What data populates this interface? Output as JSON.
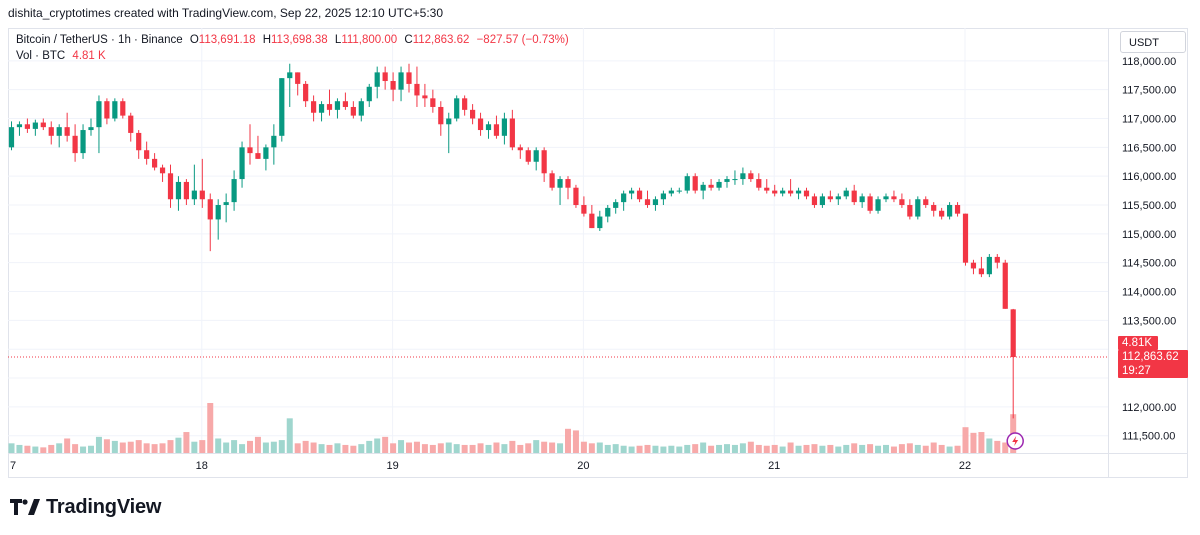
{
  "caption": "dishita_cryptotimes created with TradingView.com, Sep 22, 2025 12:10 UTC+5:30",
  "legend": {
    "symbol": "Bitcoin / TetherUS · 1h · Binance",
    "o_label": "O",
    "o": "113,691.18",
    "h_label": "H",
    "h": "113,698.38",
    "l_label": "L",
    "l": "111,800.00",
    "c_label": "C",
    "c": "112,863.62",
    "change": "−827.57 (−0.73%)",
    "vol_label": "Vol · BTC",
    "vol": "4.81 K"
  },
  "currency_button": "USDT",
  "brand": "TradingView",
  "colors": {
    "up": "#089981",
    "down": "#f23645",
    "up_vol": "#9fd6ce",
    "down_vol": "#f7a9a9",
    "grid": "#f0f3fa"
  },
  "chart_data": {
    "type": "candlestick",
    "symbol": "Bitcoin / TetherUS",
    "interval": "1h",
    "exchange": "Binance",
    "y_ticks": [
      111500,
      112000,
      112500,
      113000,
      113500,
      114000,
      114500,
      115000,
      115500,
      116000,
      116500,
      117000,
      117500,
      118000
    ],
    "y_tick_labels": [
      "111,500.00",
      "112,000.00",
      "",
      "",
      "113,500.00",
      "114,000.00",
      "114,500.00",
      "115,000.00",
      "115,500.00",
      "116,000.00",
      "116,500.00",
      "117,000.00",
      "117,500.00",
      "118,000.00"
    ],
    "ylim": [
      111200,
      118500
    ],
    "x_ticks": [
      {
        "label": "7",
        "index": 0
      },
      {
        "label": "18",
        "index": 24
      },
      {
        "label": "19",
        "index": 48
      },
      {
        "label": "20",
        "index": 72
      },
      {
        "label": "21",
        "index": 96
      },
      {
        "label": "22",
        "index": 120
      }
    ],
    "x_first_offset": -0.5,
    "last_price": "112,863.62",
    "last_price_value": 112863.62,
    "countdown": "19:27",
    "volume_tag": "4.81K",
    "candles": [
      {
        "o": 116500,
        "h": 116950,
        "l": 116450,
        "c": 116850,
        "v": 1.2
      },
      {
        "o": 116850,
        "h": 116950,
        "l": 116700,
        "c": 116900,
        "v": 1.0
      },
      {
        "o": 116900,
        "h": 117000,
        "l": 116750,
        "c": 116820,
        "v": 0.9
      },
      {
        "o": 116820,
        "h": 116980,
        "l": 116700,
        "c": 116930,
        "v": 0.8
      },
      {
        "o": 116930,
        "h": 117000,
        "l": 116800,
        "c": 116850,
        "v": 0.7
      },
      {
        "o": 116850,
        "h": 116950,
        "l": 116550,
        "c": 116700,
        "v": 1.0
      },
      {
        "o": 116700,
        "h": 116900,
        "l": 116500,
        "c": 116850,
        "v": 1.2
      },
      {
        "o": 116850,
        "h": 117100,
        "l": 116600,
        "c": 116700,
        "v": 1.8
      },
      {
        "o": 116700,
        "h": 116900,
        "l": 116250,
        "c": 116400,
        "v": 1.1
      },
      {
        "o": 116400,
        "h": 116900,
        "l": 116300,
        "c": 116800,
        "v": 0.8
      },
      {
        "o": 116800,
        "h": 117000,
        "l": 116700,
        "c": 116850,
        "v": 0.9
      },
      {
        "o": 116850,
        "h": 117400,
        "l": 116400,
        "c": 117300,
        "v": 2.0
      },
      {
        "o": 117300,
        "h": 117350,
        "l": 116900,
        "c": 117000,
        "v": 1.7
      },
      {
        "o": 117000,
        "h": 117350,
        "l": 116950,
        "c": 117300,
        "v": 1.5
      },
      {
        "o": 117300,
        "h": 117350,
        "l": 117000,
        "c": 117050,
        "v": 1.3
      },
      {
        "o": 117050,
        "h": 117100,
        "l": 116600,
        "c": 116750,
        "v": 1.4
      },
      {
        "o": 116750,
        "h": 116800,
        "l": 116300,
        "c": 116450,
        "v": 1.6
      },
      {
        "o": 116450,
        "h": 116600,
        "l": 116200,
        "c": 116300,
        "v": 1.2
      },
      {
        "o": 116300,
        "h": 116400,
        "l": 116100,
        "c": 116150,
        "v": 1.1
      },
      {
        "o": 116150,
        "h": 116200,
        "l": 115900,
        "c": 116050,
        "v": 1.2
      },
      {
        "o": 116050,
        "h": 116200,
        "l": 115450,
        "c": 115600,
        "v": 1.6
      },
      {
        "o": 115600,
        "h": 116000,
        "l": 115400,
        "c": 115900,
        "v": 1.9
      },
      {
        "o": 115900,
        "h": 115950,
        "l": 115500,
        "c": 115600,
        "v": 2.6
      },
      {
        "o": 115600,
        "h": 116200,
        "l": 115500,
        "c": 115750,
        "v": 1.4
      },
      {
        "o": 115750,
        "h": 116300,
        "l": 115450,
        "c": 115600,
        "v": 1.6
      },
      {
        "o": 115600,
        "h": 115700,
        "l": 114700,
        "c": 115250,
        "v": 6.2
      },
      {
        "o": 115250,
        "h": 115600,
        "l": 114900,
        "c": 115500,
        "v": 1.8
      },
      {
        "o": 115500,
        "h": 115700,
        "l": 115200,
        "c": 115550,
        "v": 1.3
      },
      {
        "o": 115550,
        "h": 116100,
        "l": 115400,
        "c": 115950,
        "v": 1.6
      },
      {
        "o": 115950,
        "h": 116600,
        "l": 115800,
        "c": 116500,
        "v": 1.1
      },
      {
        "o": 116500,
        "h": 116900,
        "l": 116200,
        "c": 116400,
        "v": 1.5
      },
      {
        "o": 116400,
        "h": 116700,
        "l": 116300,
        "c": 116300,
        "v": 2.0
      },
      {
        "o": 116300,
        "h": 116550,
        "l": 116100,
        "c": 116500,
        "v": 1.3
      },
      {
        "o": 116500,
        "h": 116900,
        "l": 116200,
        "c": 116700,
        "v": 1.4
      },
      {
        "o": 116700,
        "h": 117700,
        "l": 116600,
        "c": 117700,
        "v": 1.6
      },
      {
        "o": 117700,
        "h": 117950,
        "l": 117200,
        "c": 117800,
        "v": 4.3
      },
      {
        "o": 117800,
        "h": 117800,
        "l": 117400,
        "c": 117600,
        "v": 1.2
      },
      {
        "o": 117600,
        "h": 117650,
        "l": 117200,
        "c": 117300,
        "v": 1.5
      },
      {
        "o": 117300,
        "h": 117400,
        "l": 116950,
        "c": 117100,
        "v": 1.3
      },
      {
        "o": 117100,
        "h": 117300,
        "l": 116950,
        "c": 117250,
        "v": 1.1
      },
      {
        "o": 117250,
        "h": 117500,
        "l": 117050,
        "c": 117150,
        "v": 1.0
      },
      {
        "o": 117150,
        "h": 117350,
        "l": 117000,
        "c": 117300,
        "v": 1.2
      },
      {
        "o": 117300,
        "h": 117450,
        "l": 117150,
        "c": 117200,
        "v": 1.0
      },
      {
        "o": 117200,
        "h": 117300,
        "l": 117000,
        "c": 117050,
        "v": 0.9
      },
      {
        "o": 117050,
        "h": 117350,
        "l": 116950,
        "c": 117300,
        "v": 1.1
      },
      {
        "o": 117300,
        "h": 117600,
        "l": 117200,
        "c": 117550,
        "v": 1.5
      },
      {
        "o": 117550,
        "h": 117900,
        "l": 117350,
        "c": 117800,
        "v": 1.8
      },
      {
        "o": 117800,
        "h": 117900,
        "l": 117500,
        "c": 117650,
        "v": 2.0
      },
      {
        "o": 117650,
        "h": 117800,
        "l": 117300,
        "c": 117500,
        "v": 1.2
      },
      {
        "o": 117500,
        "h": 117900,
        "l": 117300,
        "c": 117800,
        "v": 1.6
      },
      {
        "o": 117800,
        "h": 117950,
        "l": 117450,
        "c": 117600,
        "v": 1.3
      },
      {
        "o": 117600,
        "h": 117900,
        "l": 117200,
        "c": 117400,
        "v": 1.4
      },
      {
        "o": 117400,
        "h": 117600,
        "l": 117200,
        "c": 117350,
        "v": 1.1
      },
      {
        "o": 117350,
        "h": 117500,
        "l": 117100,
        "c": 117200,
        "v": 1.0
      },
      {
        "o": 117200,
        "h": 117300,
        "l": 116700,
        "c": 116900,
        "v": 1.2
      },
      {
        "o": 116900,
        "h": 117100,
        "l": 116400,
        "c": 117000,
        "v": 1.3
      },
      {
        "o": 117000,
        "h": 117400,
        "l": 116950,
        "c": 117350,
        "v": 1.1
      },
      {
        "o": 117350,
        "h": 117400,
        "l": 117050,
        "c": 117150,
        "v": 1.0
      },
      {
        "o": 117150,
        "h": 117250,
        "l": 116900,
        "c": 117000,
        "v": 1.0
      },
      {
        "o": 117000,
        "h": 117100,
        "l": 116700,
        "c": 116800,
        "v": 1.2
      },
      {
        "o": 116800,
        "h": 116950,
        "l": 116650,
        "c": 116900,
        "v": 1.0
      },
      {
        "o": 116900,
        "h": 117050,
        "l": 116650,
        "c": 116700,
        "v": 1.3
      },
      {
        "o": 116700,
        "h": 117100,
        "l": 116550,
        "c": 117000,
        "v": 1.1
      },
      {
        "o": 117000,
        "h": 117150,
        "l": 116450,
        "c": 116500,
        "v": 1.5
      },
      {
        "o": 116500,
        "h": 116550,
        "l": 116300,
        "c": 116450,
        "v": 1.0
      },
      {
        "o": 116450,
        "h": 116500,
        "l": 116200,
        "c": 116250,
        "v": 1.2
      },
      {
        "o": 116250,
        "h": 116500,
        "l": 116100,
        "c": 116450,
        "v": 1.6
      },
      {
        "o": 116450,
        "h": 116500,
        "l": 115900,
        "c": 116050,
        "v": 1.4
      },
      {
        "o": 116050,
        "h": 116100,
        "l": 115750,
        "c": 115800,
        "v": 1.3
      },
      {
        "o": 115800,
        "h": 116000,
        "l": 115500,
        "c": 115950,
        "v": 1.2
      },
      {
        "o": 115950,
        "h": 116000,
        "l": 115600,
        "c": 115800,
        "v": 3.0
      },
      {
        "o": 115800,
        "h": 115850,
        "l": 115450,
        "c": 115500,
        "v": 2.8
      },
      {
        "o": 115500,
        "h": 115650,
        "l": 115300,
        "c": 115350,
        "v": 1.4
      },
      {
        "o": 115350,
        "h": 115500,
        "l": 115100,
        "c": 115100,
        "v": 1.2
      },
      {
        "o": 115100,
        "h": 115400,
        "l": 115050,
        "c": 115300,
        "v": 1.3
      },
      {
        "o": 115300,
        "h": 115500,
        "l": 115200,
        "c": 115450,
        "v": 1.0
      },
      {
        "o": 115450,
        "h": 115600,
        "l": 115350,
        "c": 115550,
        "v": 1.1
      },
      {
        "o": 115550,
        "h": 115750,
        "l": 115400,
        "c": 115700,
        "v": 0.9
      },
      {
        "o": 115700,
        "h": 115800,
        "l": 115600,
        "c": 115750,
        "v": 0.8
      },
      {
        "o": 115750,
        "h": 115800,
        "l": 115550,
        "c": 115600,
        "v": 0.9
      },
      {
        "o": 115600,
        "h": 115750,
        "l": 115450,
        "c": 115500,
        "v": 1.0
      },
      {
        "o": 115500,
        "h": 115650,
        "l": 115400,
        "c": 115600,
        "v": 0.9
      },
      {
        "o": 115600,
        "h": 115750,
        "l": 115500,
        "c": 115700,
        "v": 0.8
      },
      {
        "o": 115700,
        "h": 115800,
        "l": 115650,
        "c": 115750,
        "v": 0.9
      },
      {
        "o": 115750,
        "h": 115800,
        "l": 115700,
        "c": 115750,
        "v": 0.8
      },
      {
        "o": 115750,
        "h": 116050,
        "l": 115700,
        "c": 116000,
        "v": 1.0
      },
      {
        "o": 116000,
        "h": 116050,
        "l": 115700,
        "c": 115750,
        "v": 1.1
      },
      {
        "o": 115750,
        "h": 115900,
        "l": 115600,
        "c": 115850,
        "v": 1.3
      },
      {
        "o": 115850,
        "h": 115950,
        "l": 115750,
        "c": 115800,
        "v": 0.9
      },
      {
        "o": 115800,
        "h": 115950,
        "l": 115750,
        "c": 115900,
        "v": 1.0
      },
      {
        "o": 115900,
        "h": 116000,
        "l": 115800,
        "c": 115950,
        "v": 1.1
      },
      {
        "o": 115950,
        "h": 116100,
        "l": 115850,
        "c": 115950,
        "v": 1.0
      },
      {
        "o": 115950,
        "h": 116150,
        "l": 115850,
        "c": 116050,
        "v": 1.2
      },
      {
        "o": 116050,
        "h": 116100,
        "l": 115900,
        "c": 115950,
        "v": 1.4
      },
      {
        "o": 115950,
        "h": 116050,
        "l": 115750,
        "c": 115800,
        "v": 1.0
      },
      {
        "o": 115800,
        "h": 115950,
        "l": 115700,
        "c": 115750,
        "v": 0.9
      },
      {
        "o": 115750,
        "h": 115850,
        "l": 115650,
        "c": 115700,
        "v": 1.0
      },
      {
        "o": 115700,
        "h": 115800,
        "l": 115650,
        "c": 115750,
        "v": 0.8
      },
      {
        "o": 115750,
        "h": 115950,
        "l": 115650,
        "c": 115700,
        "v": 1.3
      },
      {
        "o": 115700,
        "h": 115800,
        "l": 115600,
        "c": 115750,
        "v": 0.9
      },
      {
        "o": 115750,
        "h": 115800,
        "l": 115600,
        "c": 115650,
        "v": 1.0
      },
      {
        "o": 115650,
        "h": 115700,
        "l": 115450,
        "c": 115500,
        "v": 1.1
      },
      {
        "o": 115500,
        "h": 115700,
        "l": 115450,
        "c": 115650,
        "v": 0.9
      },
      {
        "o": 115650,
        "h": 115750,
        "l": 115550,
        "c": 115600,
        "v": 1.0
      },
      {
        "o": 115600,
        "h": 115700,
        "l": 115500,
        "c": 115650,
        "v": 0.8
      },
      {
        "o": 115650,
        "h": 115800,
        "l": 115600,
        "c": 115750,
        "v": 1.0
      },
      {
        "o": 115750,
        "h": 115850,
        "l": 115500,
        "c": 115550,
        "v": 1.2
      },
      {
        "o": 115550,
        "h": 115700,
        "l": 115450,
        "c": 115650,
        "v": 1.0
      },
      {
        "o": 115650,
        "h": 115700,
        "l": 115350,
        "c": 115400,
        "v": 1.1
      },
      {
        "o": 115400,
        "h": 115650,
        "l": 115350,
        "c": 115600,
        "v": 0.9
      },
      {
        "o": 115600,
        "h": 115700,
        "l": 115550,
        "c": 115650,
        "v": 1.0
      },
      {
        "o": 115650,
        "h": 115750,
        "l": 115550,
        "c": 115600,
        "v": 0.8
      },
      {
        "o": 115600,
        "h": 115700,
        "l": 115450,
        "c": 115500,
        "v": 1.1
      },
      {
        "o": 115500,
        "h": 115600,
        "l": 115250,
        "c": 115300,
        "v": 1.2
      },
      {
        "o": 115300,
        "h": 115650,
        "l": 115250,
        "c": 115600,
        "v": 1.0
      },
      {
        "o": 115600,
        "h": 115650,
        "l": 115450,
        "c": 115500,
        "v": 0.9
      },
      {
        "o": 115500,
        "h": 115550,
        "l": 115300,
        "c": 115400,
        "v": 1.3
      },
      {
        "o": 115400,
        "h": 115450,
        "l": 115250,
        "c": 115300,
        "v": 1.0
      },
      {
        "o": 115300,
        "h": 115550,
        "l": 115250,
        "c": 115500,
        "v": 0.8
      },
      {
        "o": 115500,
        "h": 115550,
        "l": 115300,
        "c": 115350,
        "v": 0.9
      },
      {
        "o": 115350,
        "h": 115350,
        "l": 114450,
        "c": 114500,
        "v": 3.2
      },
      {
        "o": 114500,
        "h": 114550,
        "l": 114300,
        "c": 114400,
        "v": 2.5
      },
      {
        "o": 114400,
        "h": 114600,
        "l": 114250,
        "c": 114300,
        "v": 2.6
      },
      {
        "o": 114300,
        "h": 114650,
        "l": 114250,
        "c": 114600,
        "v": 1.8
      },
      {
        "o": 114600,
        "h": 114650,
        "l": 114400,
        "c": 114500,
        "v": 1.5
      },
      {
        "o": 114500,
        "h": 114550,
        "l": 113700,
        "c": 113700,
        "v": 1.3
      },
      {
        "o": 113691.18,
        "h": 113698.38,
        "l": 111800,
        "c": 112863.62,
        "v": 4.81
      }
    ]
  }
}
